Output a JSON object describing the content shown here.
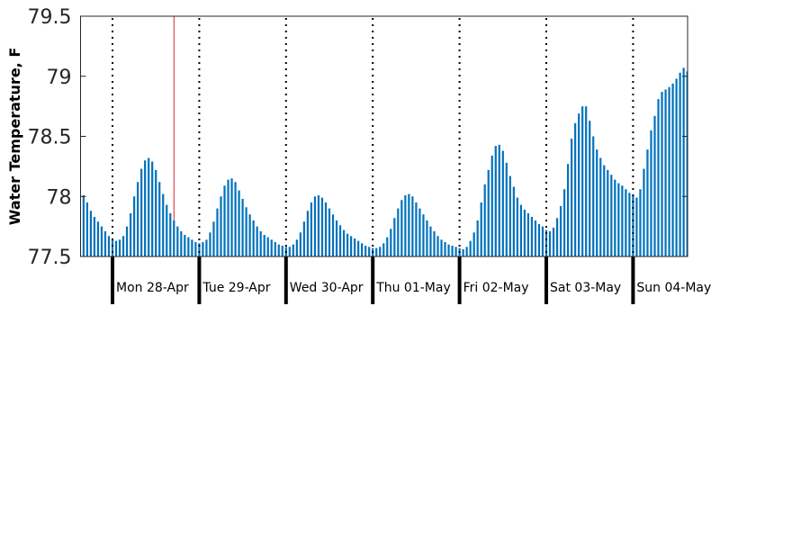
{
  "chart_data": {
    "type": "bar",
    "title": "",
    "xlabel": "",
    "ylabel": "Water Temperature, F",
    "ylim": [
      77.5,
      79.5
    ],
    "yticks": [
      77.5,
      78,
      78.5,
      79,
      79.5
    ],
    "ytick_labels": [
      "77.5",
      "78",
      "78.5",
      "79",
      "79.5"
    ],
    "grid": false,
    "bar_color": "#0072bd",
    "day_labels": [
      "Mon 28-Apr",
      "Tue 29-Apr",
      "Wed 30-Apr",
      "Thu 01-May",
      "Fri 02-May",
      "Sat 03-May",
      "Sun 04-May"
    ],
    "start_hour_offset": -9,
    "marker_hour": 17,
    "marker_color": "#d62728",
    "values": [
      78.1,
      78.01,
      77.95,
      77.88,
      77.83,
      77.79,
      77.75,
      77.71,
      77.67,
      77.64,
      77.63,
      77.64,
      77.67,
      77.75,
      77.86,
      78.0,
      78.12,
      78.23,
      78.3,
      78.32,
      78.29,
      78.22,
      78.12,
      78.02,
      77.93,
      77.86,
      77.8,
      77.75,
      77.71,
      77.68,
      77.66,
      77.64,
      77.62,
      77.61,
      77.62,
      77.64,
      77.7,
      77.79,
      77.9,
      78.0,
      78.09,
      78.14,
      78.15,
      78.12,
      78.05,
      77.98,
      77.91,
      77.85,
      77.8,
      77.75,
      77.71,
      77.68,
      77.66,
      77.64,
      77.62,
      77.6,
      77.59,
      77.58,
      77.58,
      77.6,
      77.64,
      77.7,
      77.79,
      77.88,
      77.95,
      78.0,
      78.01,
      77.99,
      77.95,
      77.9,
      77.85,
      77.8,
      77.76,
      77.72,
      77.69,
      77.67,
      77.65,
      77.63,
      77.61,
      77.59,
      77.58,
      77.57,
      77.57,
      77.58,
      77.61,
      77.66,
      77.73,
      77.82,
      77.9,
      77.97,
      78.01,
      78.02,
      78.0,
      77.95,
      77.9,
      77.85,
      77.8,
      77.75,
      77.71,
      77.67,
      77.64,
      77.62,
      77.6,
      77.59,
      77.58,
      77.57,
      77.56,
      77.58,
      77.63,
      77.7,
      77.8,
      77.95,
      78.1,
      78.22,
      78.34,
      78.42,
      78.43,
      78.38,
      78.28,
      78.17,
      78.08,
      77.99,
      77.93,
      77.89,
      77.86,
      77.83,
      77.8,
      77.77,
      77.75,
      77.72,
      77.71,
      77.74,
      77.82,
      77.92,
      78.06,
      78.27,
      78.48,
      78.61,
      78.69,
      78.75,
      78.75,
      78.63,
      78.5,
      78.39,
      78.32,
      78.26,
      78.22,
      78.18,
      78.14,
      78.11,
      78.09,
      78.06,
      78.03,
      78.01,
      77.99,
      78.06,
      78.23,
      78.39,
      78.55,
      78.67,
      78.81,
      78.87,
      78.89,
      78.91,
      78.94,
      78.98,
      79.03,
      79.07,
      79.04
    ]
  }
}
